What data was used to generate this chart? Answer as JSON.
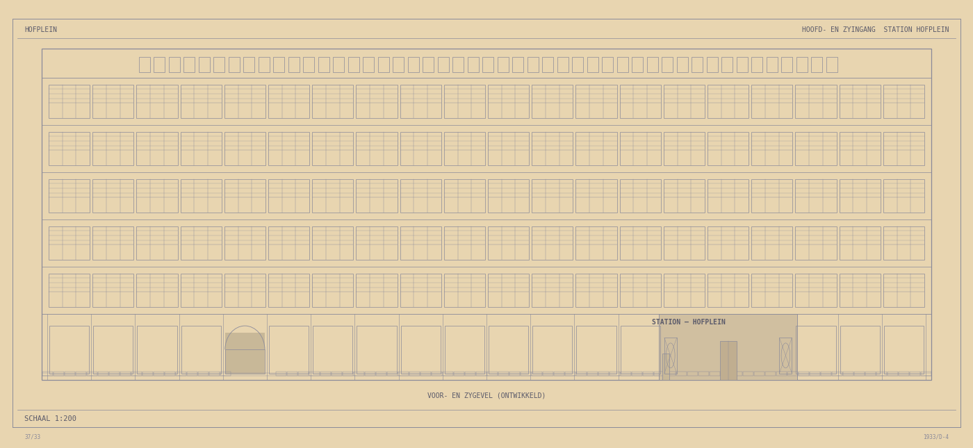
{
  "bg_color": "#e8d5b0",
  "paper_color": "#e8d5b0",
  "line_color": "#8a8a9a",
  "dark_line_color": "#5a5a6a",
  "title_left": "HOFPLEIN",
  "title_right": "HOOFD- EN ZYINGANG  STATION HOFPLEIN",
  "subtitle_center": "VOOR- EN ZYGEVEL (ONTWIKKELD)",
  "scale_text": "SCHAAL 1:200",
  "ref_bottom_left": "37/33",
  "ref_bottom_right": "1933/D-4",
  "station_sign_text": "STATION — HOFPLEIN"
}
